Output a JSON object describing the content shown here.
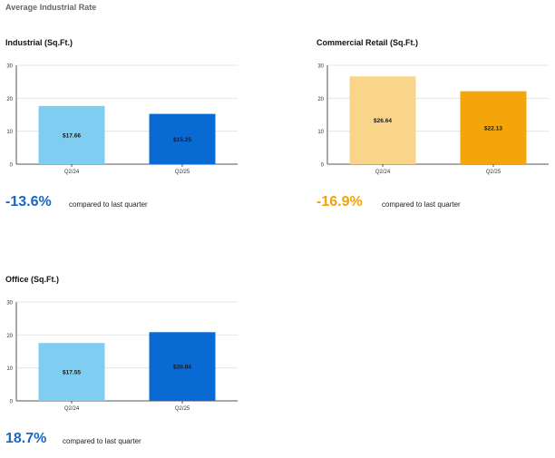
{
  "page_title": "Average Industrial Rate",
  "comparison_label": "compared to last quarter",
  "chart_data": [
    {
      "type": "bar",
      "title": "Industrial (Sq.Ft.)",
      "categories": [
        "Q2/24",
        "Q2/25"
      ],
      "values": [
        17.66,
        15.25
      ],
      "data_labels": [
        "$17.66",
        "$15.25"
      ],
      "colors": [
        "#7fcdf0",
        "#0a6ad4"
      ],
      "label_colors": [
        "#1a1a1a",
        "#1a1a1a"
      ],
      "ylim": [
        0,
        30
      ],
      "yticks": [
        0,
        10,
        20,
        30
      ],
      "grid": true,
      "change": "-13.6%",
      "change_color": "#1a66c2"
    },
    {
      "type": "bar",
      "title": "Commercial Retail (Sq.Ft.)",
      "categories": [
        "Q2/24",
        "Q2/25"
      ],
      "values": [
        26.64,
        22.13
      ],
      "data_labels": [
        "$26.64",
        "$22.13"
      ],
      "colors": [
        "#f8d58a",
        "#f3a50a"
      ],
      "label_colors": [
        "#1a1a1a",
        "#1a1a1a"
      ],
      "ylim": [
        0,
        30
      ],
      "yticks": [
        0,
        10,
        20,
        30
      ],
      "grid": true,
      "change": "-16.9%",
      "change_color": "#f0a30a"
    },
    {
      "type": "bar",
      "title": "Office (Sq.Ft.)",
      "categories": [
        "Q2/24",
        "Q2/25"
      ],
      "values": [
        17.55,
        20.84
      ],
      "data_labels": [
        "$17.55",
        "$20.84"
      ],
      "colors": [
        "#7fcdf0",
        "#0a6ad4"
      ],
      "label_colors": [
        "#1a1a1a",
        "#1a1a1a"
      ],
      "ylim": [
        0,
        30
      ],
      "yticks": [
        0,
        10,
        20,
        30
      ],
      "grid": true,
      "change": "18.7%",
      "change_color": "#1a66c2"
    }
  ]
}
